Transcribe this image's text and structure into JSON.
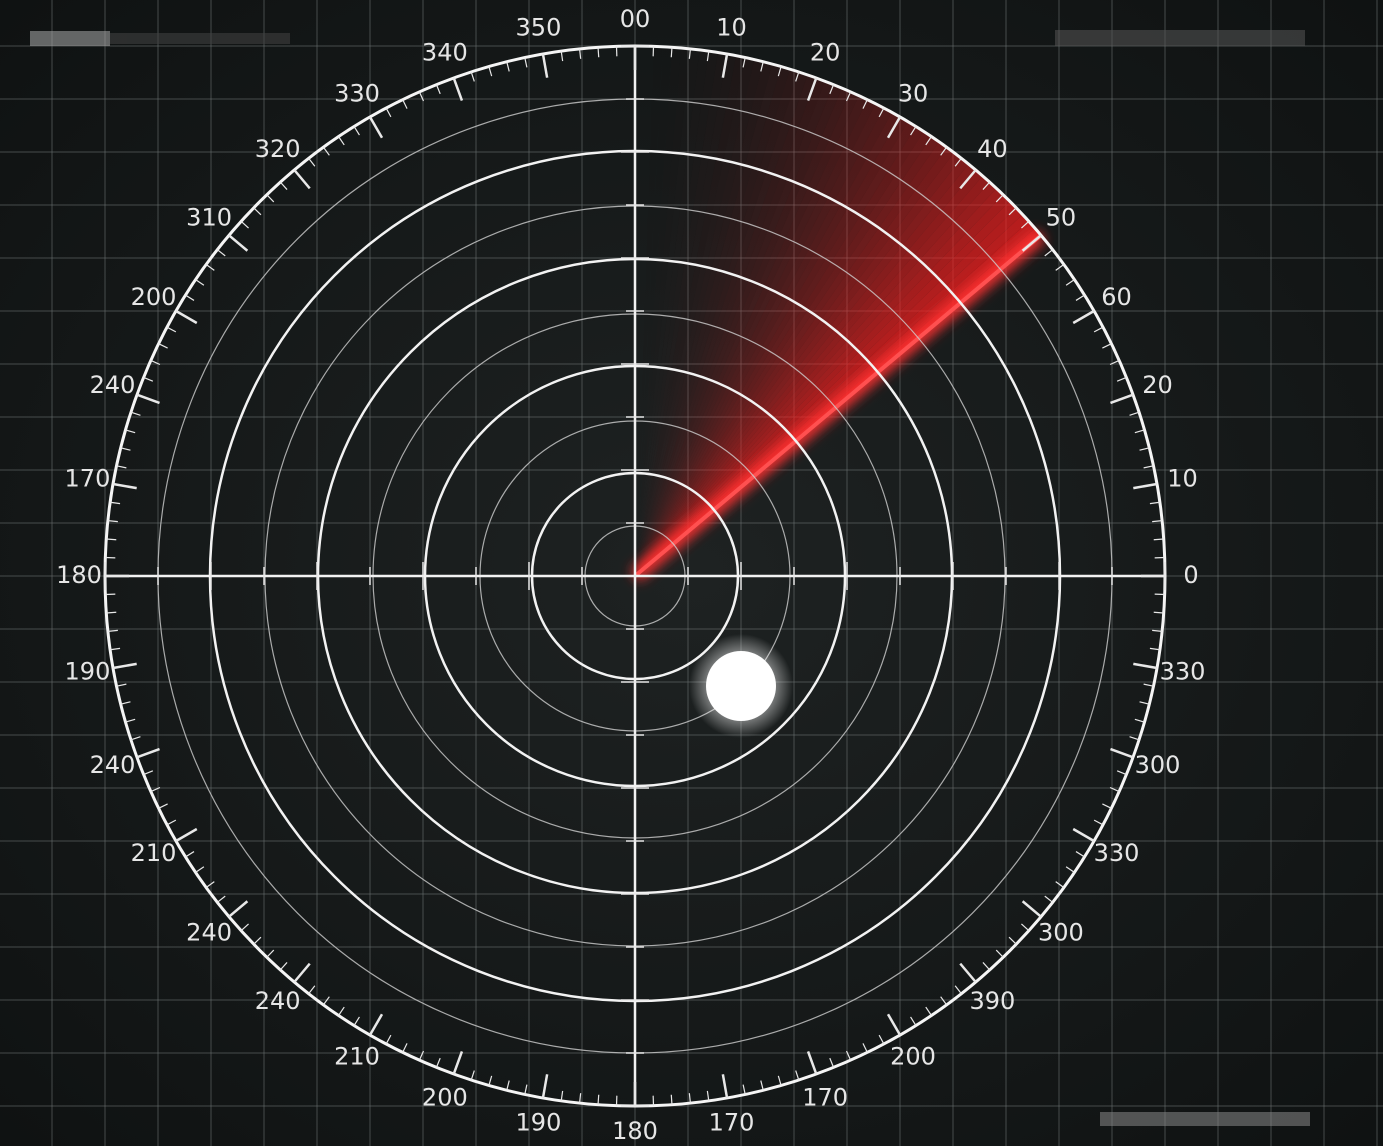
{
  "dial_labels": [
    "00",
    "10",
    "20",
    "30",
    "40",
    "50",
    "60",
    "20",
    "10",
    "0",
    "330",
    "300",
    "330",
    "300",
    "390",
    "200",
    "170",
    "170",
    "180",
    "190",
    "200",
    "210",
    "240",
    "240",
    "210",
    "240",
    "190",
    "180",
    "170",
    "240",
    "200",
    "310",
    "320",
    "330",
    "340",
    "350"
  ]
}
